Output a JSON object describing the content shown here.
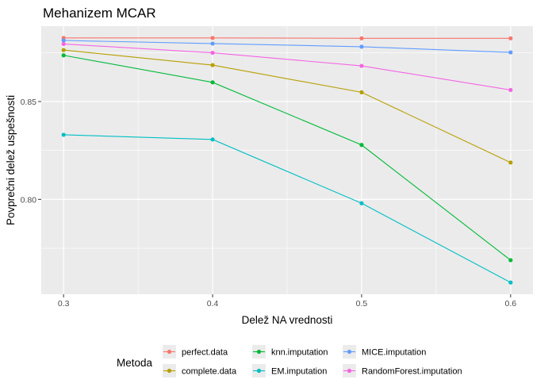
{
  "chart_data": {
    "type": "line",
    "title": "Mehanizem MCAR",
    "xlabel": "Delež NA vrednosti",
    "ylabel": "Povprečni delež uspešnosti",
    "x": [
      0.3,
      0.4,
      0.5,
      0.6
    ],
    "x_ticks": [
      "0.3",
      "0.4",
      "0.5",
      "0.6"
    ],
    "y_ticks": [
      0.8,
      0.85
    ],
    "y_tick_labels": [
      "0.80",
      "0.85"
    ],
    "xlim": [
      0.285,
      0.615
    ],
    "ylim": [
      0.7515,
      0.8885
    ],
    "grid": true,
    "legend": {
      "title": "Metoda",
      "position": "bottom"
    },
    "series": [
      {
        "name": "perfect.data",
        "color": "#F8766D",
        "values": [
          0.8825,
          0.8825,
          0.8823,
          0.8823
        ]
      },
      {
        "name": "complete.data",
        "color": "#B79F00",
        "values": [
          0.8763,
          0.8686,
          0.8547,
          0.8188
        ]
      },
      {
        "name": "knn.imputation",
        "color": "#00BA38",
        "values": [
          0.8736,
          0.8598,
          0.8278,
          0.7689
        ]
      },
      {
        "name": "EM.imputation",
        "color": "#00BFC4",
        "values": [
          0.833,
          0.8306,
          0.798,
          0.7575
        ]
      },
      {
        "name": "MICE.imputation",
        "color": "#619CFF",
        "values": [
          0.8812,
          0.8796,
          0.878,
          0.8751
        ]
      },
      {
        "name": "RandomForest.imputation",
        "color": "#F564E3",
        "values": [
          0.8794,
          0.8749,
          0.8682,
          0.8559
        ]
      }
    ]
  }
}
